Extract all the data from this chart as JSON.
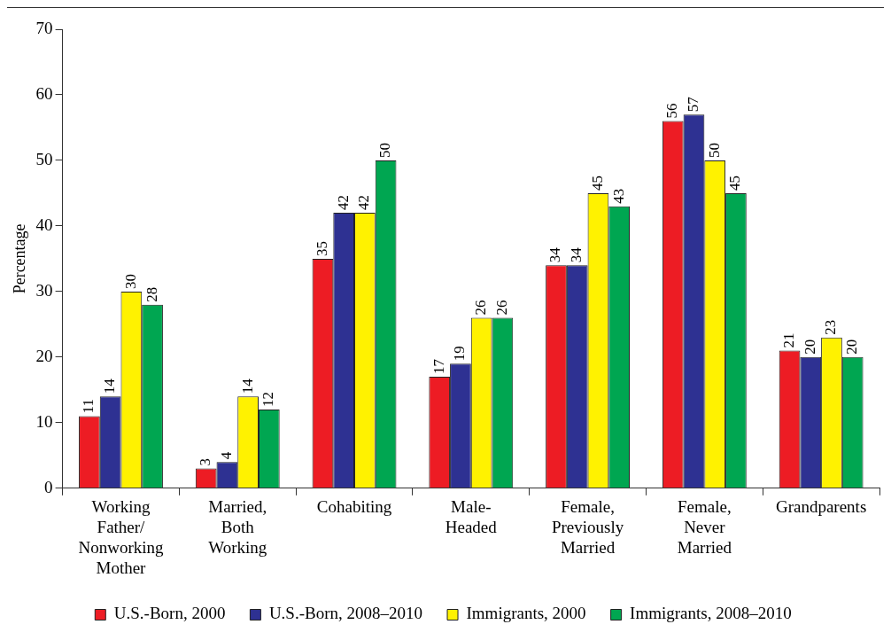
{
  "chart_data": {
    "type": "bar",
    "ylabel": "Percentage",
    "categories": [
      "Working\nFather/\nNonworking\nMother",
      "Married,\nBoth\nWorking",
      "Cohabiting",
      "Male-\nHeaded",
      "Female,\nPreviously\nMarried",
      "Female,\nNever\nMarried",
      "Grandparents"
    ],
    "series": [
      {
        "name": "U.S.-Born, 2000",
        "color": "#ed1c24",
        "values": [
          11,
          3,
          35,
          17,
          34,
          56,
          21
        ]
      },
      {
        "name": "U.S.-Born, 2008–2010",
        "color": "#2e3192",
        "values": [
          14,
          4,
          42,
          19,
          34,
          57,
          20
        ]
      },
      {
        "name": "Immigrants, 2000",
        "color": "#fff200",
        "values": [
          30,
          14,
          42,
          26,
          45,
          50,
          23
        ]
      },
      {
        "name": "Immigrants, 2008–2010",
        "color": "#00a651",
        "values": [
          28,
          12,
          50,
          26,
          43,
          45,
          20
        ]
      }
    ],
    "ylim": [
      0,
      70
    ],
    "yticks": [
      0,
      10,
      20,
      30,
      40,
      50,
      60,
      70
    ],
    "grid": false,
    "legend": "bottom",
    "data_labels": true
  }
}
